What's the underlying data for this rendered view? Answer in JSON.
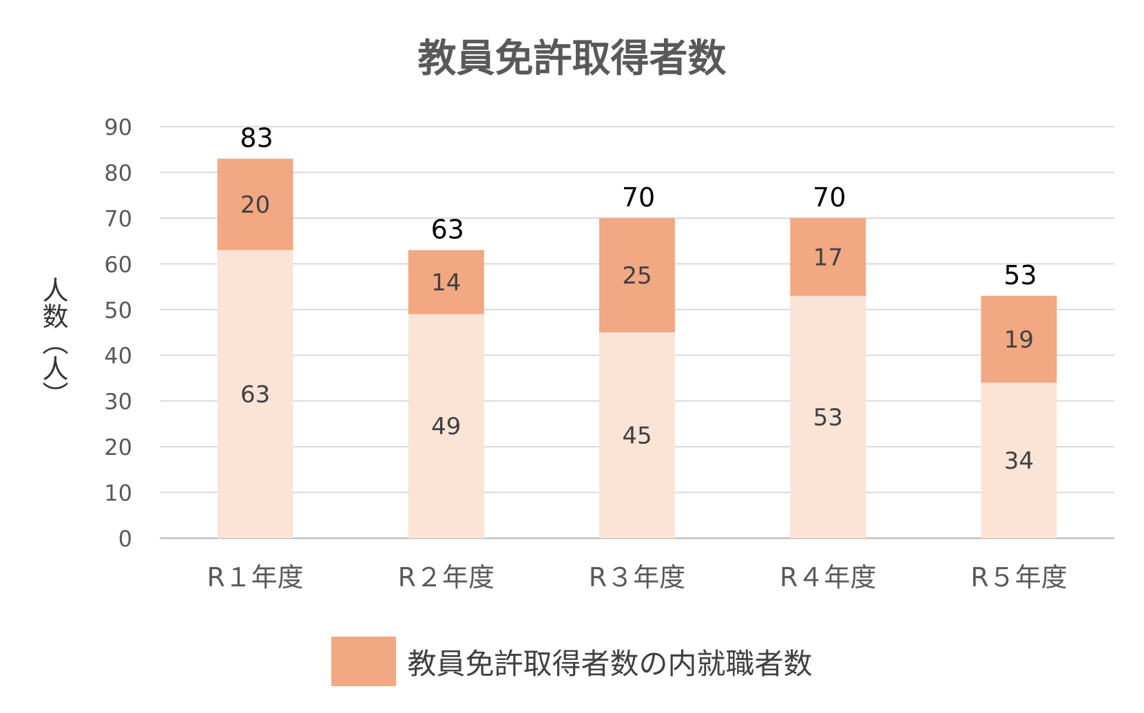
{
  "chart_data": {
    "type": "bar",
    "stacked": true,
    "title": "教員免許取得者数",
    "ylabel": "人数（人）",
    "xlabel": "",
    "categories": [
      "R１年度",
      "R２年度",
      "R３年度",
      "R４年度",
      "R５年度"
    ],
    "series": [
      {
        "values": [
          63,
          49,
          45,
          53,
          34
        ],
        "color": "#fbe3d6"
      },
      {
        "name": "教員免許取得者数の内就職者数",
        "values": [
          20,
          14,
          25,
          17,
          19
        ],
        "color": "#f2a882"
      }
    ],
    "totals": [
      83,
      63,
      70,
      70,
      53
    ],
    "ylim": [
      0,
      90
    ],
    "yticks": [
      0,
      10,
      20,
      30,
      40,
      50,
      60,
      70,
      80,
      90
    ],
    "grid": true,
    "legend_position": "bottom"
  }
}
